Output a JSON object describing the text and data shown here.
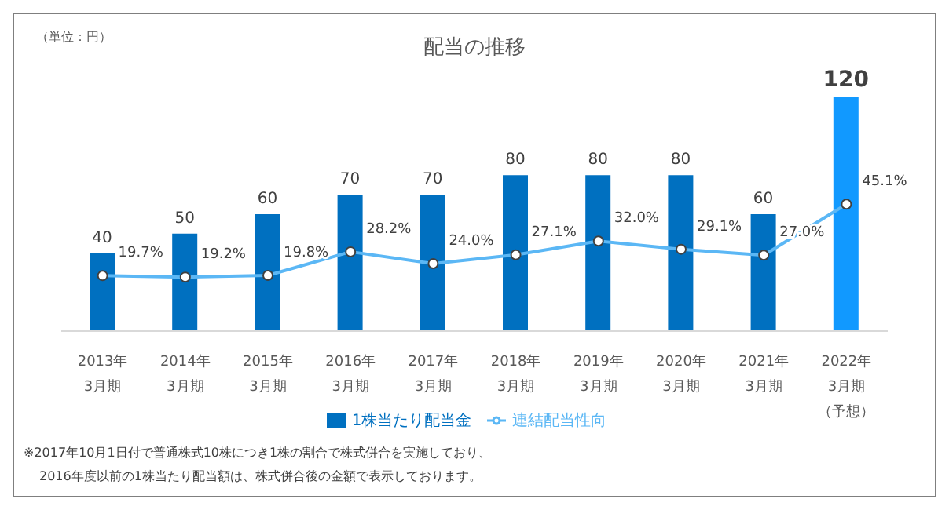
{
  "chart_data": {
    "type": "bar",
    "title": "配当の推移",
    "categories": [
      "2013年3月期",
      "2014年3月期",
      "2015年3月期",
      "2016年3月期",
      "2017年3月期",
      "2018年3月期",
      "2019年3月期",
      "2020年3月期",
      "2021年3月期",
      "2022年3月期（予想）"
    ],
    "series": [
      {
        "name": "1株当たり配当金",
        "color": "#0070c0",
        "colors": [
          "#0070c0",
          "#0070c0",
          "#0070c0",
          "#0070c0",
          "#0070c0",
          "#0070c0",
          "#0070c0",
          "#0070c0",
          "#0070c0",
          "#1199ff"
        ],
        "values": [
          40,
          50,
          60,
          70,
          70,
          80,
          80,
          80,
          60,
          120
        ]
      },
      {
        "name": "連結配当性向",
        "type": "line",
        "axis": "y2",
        "color": "#5bb7f5",
        "values": [
          19.7,
          19.2,
          19.8,
          28.2,
          24.0,
          27.1,
          32.0,
          29.1,
          27.0,
          45.1
        ],
        "value_labels": [
          "19.7%",
          "19.2%",
          "19.8%",
          "28.2%",
          "24.0%",
          "27.1%",
          "32.0%",
          "29.1%",
          "27.0%",
          "45.1%"
        ],
        "marker": "circle"
      }
    ],
    "data_labels": true,
    "legend": "bottom",
    "annotations": [
      "（単位：円）",
      "※2017年10月1日付で普通株式10株につき1株の割合で株式併合を実施しており、",
      "2016年度以前の1株当たり配当額は、株式併合後の金額で表示しております。"
    ]
  }
}
